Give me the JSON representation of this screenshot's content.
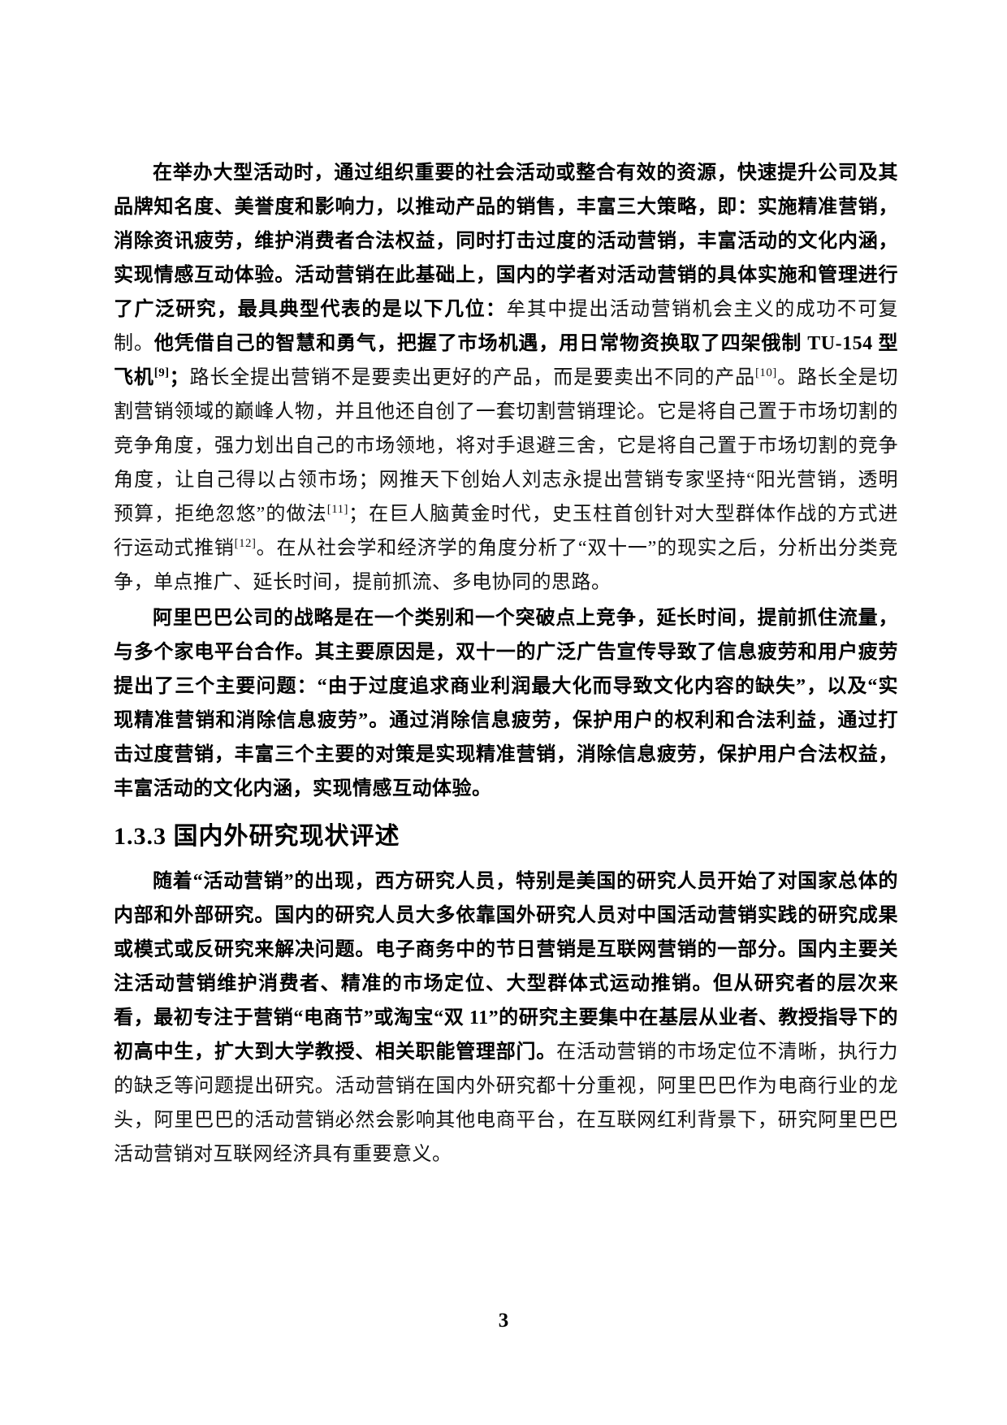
{
  "content": {
    "paragraph1": {
      "runs": [
        {
          "text": "在举办大型活动时，通过组织重要的社会活动或整合有效的资源，快速提升公司及其品牌知名度、美誉度和影响力，以推动产品的销售，丰富三大策略，即：实施精准营销，消除资讯疲劳，维护消费者合法权益，同时打击过度的活动营销，丰富活动的文化内涵，实现情感互动体验。活动营销在此基础上，国内的学者对活动营销的具体实施和管理进行了广泛研究，最具典型代表的是以下几位：",
          "bold": true
        },
        {
          "text": "牟其中提出活动营销机会主义的成功不可复制。",
          "bold": false
        },
        {
          "text": "他凭借自己的智慧和勇气，把握了市场机遇，用日常物资换取了四架俄制 TU-154 型飞机",
          "bold": true
        },
        {
          "text": "[9]",
          "bold": true,
          "sup": true
        },
        {
          "text": "；",
          "bold": true
        },
        {
          "text": "路长全提出营销不是要卖出更好的产品，而是要卖出不同的产品",
          "bold": false
        },
        {
          "text": "[10]",
          "bold": false,
          "sup": true
        },
        {
          "text": "。路长全是切割营销领域的巅峰人物，并且他还自创了一套切割营销理论。它是将自己置于市场切割的竞争角度，强力划出自己的市场领地，将对手退避三舍，它是将自己置于市场切割的竞争角度，让自己得以占领市场；网推天下创始人刘志永提出营销专家坚持“阳光营销，透明预算，拒绝忽悠”的做法",
          "bold": false
        },
        {
          "text": "[11]",
          "bold": false,
          "sup": true
        },
        {
          "text": "；在巨人脑黄金时代，史玉柱首创针对大型群体作战的方式进行运动式推销",
          "bold": false
        },
        {
          "text": "[12]",
          "bold": false,
          "sup": true
        },
        {
          "text": "。在从社会学和经济学的角度分析了“双十一”的现实之后，分析出分类竞争，单点推广、延长时间，提前抓流、多电协同的思路。",
          "bold": false
        }
      ]
    },
    "paragraph2": {
      "runs": [
        {
          "text": "阿里巴巴公司的战略是在一个类别和一个突破点上竞争，延长时间，提前抓住流量，与多个家电平台合作。其主要原因是，双十一的广泛广告宣传导致了信息疲劳和用户疲劳提出了三个主要问题：“由于过度追求商业利润最大化而导致文化内容的缺失”，以及“实现精准营销和消除信息疲劳”。通过消除信息疲劳，保护用户的权利和合法利益，通过打击过度营销，丰富三个主要的对策是实现精准营销，消除信息疲劳，保护用户合法权益，丰富活动的文化内涵，实现情感互动体验。",
          "bold": true
        }
      ]
    },
    "heading": "1.3.3 国内外研究现状评述",
    "paragraph3": {
      "runs": [
        {
          "text": "随着“活动营销”的出现，西方研究人员，特别是美国的研究人员开始了对国家总体的内部和外部研究。国内的研究人员大多依靠国外研究人员对中国活动营销实践的研究成果或模式或反研究来解决问题。电子商务中的节日营销是互联网营销的一部分。国内主要关注活动营销维护消费者、精准的市场定位、大型群体式运动推销。但从研究者的层次来看，最初专注于营销“电商节”或淘宝“双 11”的研究主要集中在基层从业者、教授指导下的初高中生，扩大到大学教授、相关职能管理部门。",
          "bold": true
        },
        {
          "text": "在活动营销的市场定位不清晰，执行力的缺乏等问题提出研究。活动营销在国内外研究都十分重视，阿里巴巴作为电商行业的龙头，阿里巴巴的活动营销必然会影响其他电商平台，在互联网红利背景下，研究阿里巴巴活动营销对互联网经济具有重要意义。",
          "bold": false
        }
      ]
    },
    "page_number": "3"
  }
}
